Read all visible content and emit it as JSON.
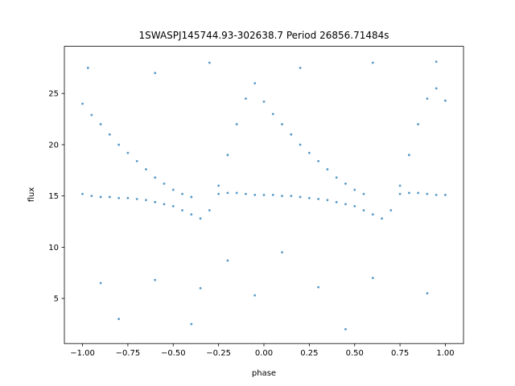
{
  "chart_data": {
    "type": "scatter",
    "title": "1SWASPJ145744.93-302638.7 Period 26856.71484s",
    "xlabel": "phase",
    "ylabel": "flux",
    "xlim": [
      -1.1,
      1.1
    ],
    "ylim": [
      0.6,
      29.6
    ],
    "x_ticks": [
      -1.0,
      -0.75,
      -0.5,
      -0.25,
      0.0,
      0.25,
      0.5,
      0.75,
      1.0
    ],
    "x_tick_labels": [
      "−1.00",
      "−0.75",
      "−0.50",
      "−0.25",
      "0.00",
      "0.25",
      "0.50",
      "0.75",
      "1.00"
    ],
    "y_ticks": [
      5,
      10,
      15,
      20,
      25
    ],
    "y_tick_labels": [
      "5",
      "10",
      "15",
      "20",
      "25"
    ],
    "grid": false,
    "point_color": "#1f77b4",
    "series": [
      {
        "points": [
          [
            -1.0,
            15.2
          ],
          [
            -1.0,
            24.0
          ],
          [
            -0.95,
            15.0
          ],
          [
            -0.95,
            22.9
          ],
          [
            -0.9,
            14.9
          ],
          [
            -0.9,
            22.0
          ],
          [
            -0.85,
            14.9
          ],
          [
            -0.85,
            21.0
          ],
          [
            -0.8,
            14.8
          ],
          [
            -0.8,
            20.0
          ],
          [
            -0.75,
            14.8
          ],
          [
            -0.75,
            19.2
          ],
          [
            -0.7,
            14.7
          ],
          [
            -0.7,
            18.4
          ],
          [
            -0.65,
            14.6
          ],
          [
            -0.65,
            17.6
          ],
          [
            -0.6,
            14.4
          ],
          [
            -0.6,
            16.8
          ],
          [
            -0.55,
            14.2
          ],
          [
            -0.55,
            16.2
          ],
          [
            -0.5,
            14.0
          ],
          [
            -0.5,
            15.6
          ],
          [
            -0.45,
            13.6
          ],
          [
            -0.45,
            15.2
          ],
          [
            -0.4,
            13.2
          ],
          [
            -0.4,
            14.9
          ],
          [
            -0.35,
            12.8
          ],
          [
            -0.3,
            13.6
          ],
          [
            -0.25,
            15.2
          ],
          [
            -0.25,
            16.0
          ],
          [
            -0.2,
            15.3
          ],
          [
            -0.2,
            19.0
          ],
          [
            -0.15,
            15.3
          ],
          [
            -0.15,
            22.0
          ],
          [
            -0.1,
            15.2
          ],
          [
            -0.1,
            24.5
          ],
          [
            -0.05,
            15.1
          ],
          [
            -0.05,
            26.0
          ],
          [
            0.0,
            15.1
          ],
          [
            0.0,
            24.2
          ],
          [
            0.05,
            15.1
          ],
          [
            0.05,
            23.0
          ],
          [
            0.1,
            15.0
          ],
          [
            0.1,
            22.0
          ],
          [
            0.15,
            15.0
          ],
          [
            0.15,
            21.0
          ],
          [
            0.2,
            14.9
          ],
          [
            0.2,
            20.0
          ],
          [
            0.25,
            14.8
          ],
          [
            0.25,
            19.2
          ],
          [
            0.3,
            14.7
          ],
          [
            0.3,
            18.4
          ],
          [
            0.35,
            14.6
          ],
          [
            0.35,
            17.6
          ],
          [
            0.4,
            14.4
          ],
          [
            0.4,
            16.8
          ],
          [
            0.45,
            14.2
          ],
          [
            0.45,
            16.2
          ],
          [
            0.5,
            14.0
          ],
          [
            0.5,
            15.6
          ],
          [
            0.55,
            13.6
          ],
          [
            0.55,
            15.2
          ],
          [
            0.6,
            13.2
          ],
          [
            0.65,
            12.8
          ],
          [
            0.7,
            13.6
          ],
          [
            0.75,
            15.2
          ],
          [
            0.75,
            16.0
          ],
          [
            0.8,
            15.3
          ],
          [
            0.8,
            19.0
          ],
          [
            0.85,
            15.3
          ],
          [
            0.85,
            22.0
          ],
          [
            0.9,
            15.2
          ],
          [
            0.9,
            24.5
          ],
          [
            0.95,
            15.1
          ],
          [
            0.95,
            25.5
          ],
          [
            1.0,
            15.1
          ],
          [
            1.0,
            24.3
          ],
          [
            -0.97,
            27.5
          ],
          [
            -0.6,
            27.0
          ],
          [
            -0.3,
            28.0
          ],
          [
            0.2,
            27.5
          ],
          [
            0.6,
            28.0
          ],
          [
            0.95,
            28.1
          ],
          [
            -0.9,
            6.5
          ],
          [
            -0.6,
            6.8
          ],
          [
            -0.35,
            6.0
          ],
          [
            -0.05,
            5.3
          ],
          [
            0.3,
            6.1
          ],
          [
            0.6,
            7.0
          ],
          [
            0.9,
            5.5
          ],
          [
            -0.8,
            3.0
          ],
          [
            -0.4,
            2.5
          ],
          [
            0.45,
            2.0
          ],
          [
            0.1,
            9.5
          ],
          [
            -0.2,
            8.7
          ]
        ]
      }
    ]
  }
}
